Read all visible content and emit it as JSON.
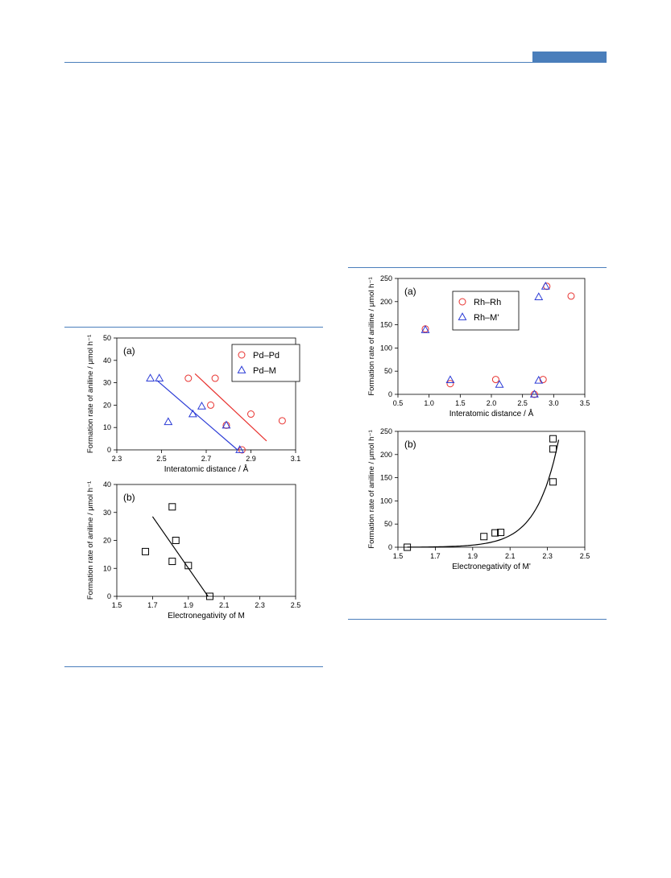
{
  "page": {
    "accent_color": "#4a7ebb"
  },
  "chart_data": [
    {
      "id": "pd-a",
      "type": "scatter",
      "panel_label": "(a)",
      "xlabel": "Interatomic distance / Å",
      "ylabel": "Formation rate of aniline / μmol h⁻¹",
      "xlim": [
        2.3,
        3.1
      ],
      "ylim": [
        0,
        50
      ],
      "xticks": [
        "2.3",
        "2.5",
        "2.7",
        "2.9",
        "3.1"
      ],
      "yticks": [
        "0",
        "10",
        "20",
        "30",
        "40",
        "50"
      ],
      "legend": "top-right",
      "series": [
        {
          "name": "Pd–Pd",
          "marker": "circle",
          "color": "#e8322f",
          "points": [
            [
              2.62,
              32
            ],
            [
              2.74,
              32
            ],
            [
              2.72,
              20
            ],
            [
              2.79,
              11
            ],
            [
              2.86,
              0
            ],
            [
              2.9,
              16
            ],
            [
              3.04,
              13
            ]
          ],
          "fit": [
            [
              2.65,
              34
            ],
            [
              2.97,
              4
            ]
          ]
        },
        {
          "name": "Pd–M",
          "marker": "triangle",
          "color": "#2b3bd6",
          "points": [
            [
              2.45,
              32
            ],
            [
              2.49,
              32
            ],
            [
              2.53,
              12.5
            ],
            [
              2.64,
              16
            ],
            [
              2.68,
              19.5
            ],
            [
              2.79,
              11
            ],
            [
              2.85,
              0
            ]
          ],
          "fit": [
            [
              2.48,
              31
            ],
            [
              2.84,
              0
            ]
          ]
        }
      ]
    },
    {
      "id": "pd-b",
      "type": "scatter",
      "panel_label": "(b)",
      "xlabel": "Electronegativity of M",
      "ylabel": "Formation rate of aniline / μmol h⁻¹",
      "xlim": [
        1.5,
        2.5
      ],
      "ylim": [
        0,
        40
      ],
      "xticks": [
        "1.5",
        "1.7",
        "1.9",
        "2.1",
        "2.3",
        "2.5"
      ],
      "yticks": [
        "0",
        "10",
        "20",
        "30",
        "40"
      ],
      "series": [
        {
          "marker": "square",
          "color": "#000000",
          "points": [
            [
              1.66,
              16
            ],
            [
              1.81,
              32
            ],
            [
              1.81,
              12.5
            ],
            [
              1.83,
              20
            ],
            [
              1.9,
              11
            ],
            [
              2.02,
              0
            ]
          ],
          "fit": [
            [
              1.7,
              28.5
            ],
            [
              2.01,
              0
            ]
          ]
        }
      ]
    },
    {
      "id": "rh-a",
      "type": "scatter",
      "panel_label": "(a)",
      "xlabel": "Interatomic distance / Å",
      "ylabel": "Formation rate of aniline / μmol h⁻¹",
      "xlim": [
        0.5,
        3.5
      ],
      "ylim": [
        0,
        250
      ],
      "xticks": [
        "0.5",
        "1.0",
        "1.5",
        "2.0",
        "2.5",
        "3.0",
        "3.5"
      ],
      "yticks": [
        "0",
        "50",
        "100",
        "150",
        "200",
        "250"
      ],
      "legend": "top-center",
      "series": [
        {
          "name": "Rh–Rh",
          "marker": "circle",
          "color": "#e8322f",
          "points": [
            [
              0.94,
              141
            ],
            [
              1.34,
              23
            ],
            [
              2.07,
              32
            ],
            [
              2.69,
              0
            ],
            [
              2.83,
              32
            ],
            [
              2.89,
              233
            ],
            [
              3.28,
              212
            ]
          ]
        },
        {
          "name": "Rh–M'",
          "marker": "triangle",
          "color": "#2b3bd6",
          "points": [
            [
              0.94,
              139
            ],
            [
              1.34,
              31
            ],
            [
              2.13,
              21
            ],
            [
              2.69,
              0
            ],
            [
              2.76,
              210
            ],
            [
              2.76,
              30
            ],
            [
              2.87,
              233
            ]
          ]
        }
      ]
    },
    {
      "id": "rh-b",
      "type": "scatter",
      "panel_label": "(b)",
      "xlabel": "Electronegativity of M'",
      "ylabel": "Formation rate of aniline / μmol h⁻¹",
      "xlim": [
        1.5,
        2.5
      ],
      "ylim": [
        0,
        250
      ],
      "xticks": [
        "1.5",
        "1.7",
        "1.9",
        "2.1",
        "2.3",
        "2.5"
      ],
      "yticks": [
        "0",
        "50",
        "100",
        "150",
        "200",
        "250"
      ],
      "series": [
        {
          "marker": "square",
          "color": "#000000",
          "points": [
            [
              1.55,
              0
            ],
            [
              1.96,
              23
            ],
            [
              2.02,
              31
            ],
            [
              2.05,
              32
            ],
            [
              2.33,
              141
            ],
            [
              2.33,
              212
            ],
            [
              2.33,
              234
            ]
          ],
          "fit_curve": {
            "kind": "exponential",
            "a": 4.5e-07,
            "b": 8.5,
            "x_range": [
              1.55,
              2.36
            ]
          }
        }
      ]
    }
  ]
}
